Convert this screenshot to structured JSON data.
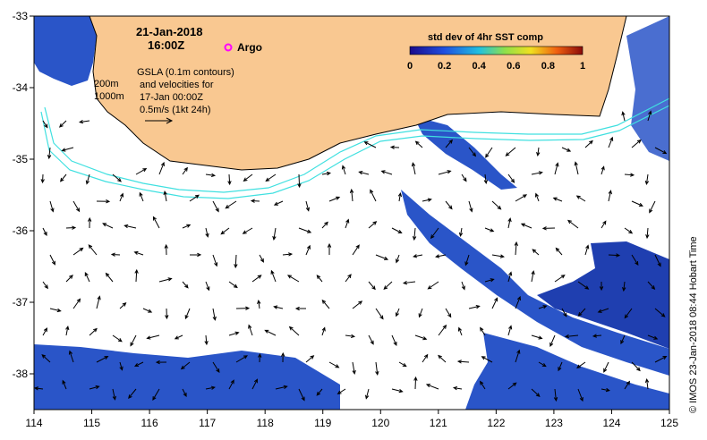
{
  "title": {
    "date": "21-Jan-2018",
    "time": "16:00Z"
  },
  "argo_label": "Argo",
  "depth_contours": [
    "200m",
    "1000m"
  ],
  "gsla_note": [
    "GSLA (0.1m contours)",
    "and velocities for",
    "17-Jan 00:00Z",
    "0.5m/s (1kt 24h)"
  ],
  "colorbar": {
    "title": "std dev of 4hr SST comp",
    "ticks": [
      "0",
      "0.2",
      "0.4",
      "0.6",
      "0.8",
      "1"
    ]
  },
  "credit": "©  IMOS 23-Jan-2018 08:44 Hobart Time",
  "axes": {
    "x_ticks": [
      "114",
      "115",
      "116",
      "117",
      "118",
      "119",
      "120",
      "121",
      "122",
      "123",
      "124",
      "125"
    ],
    "y_ticks": [
      "-33",
      "-34",
      "-35",
      "-36",
      "-37",
      "-38"
    ],
    "xlim": [
      114,
      125
    ],
    "ylim": [
      -38.5,
      -33
    ]
  },
  "colors": {
    "land": "#f9c891",
    "ocean": "#ffffff",
    "contour": "#40e0e0",
    "sst_dark": "#1f3fb0",
    "sst_mid": "#2f7fe0",
    "argo": "#ff00ff"
  }
}
